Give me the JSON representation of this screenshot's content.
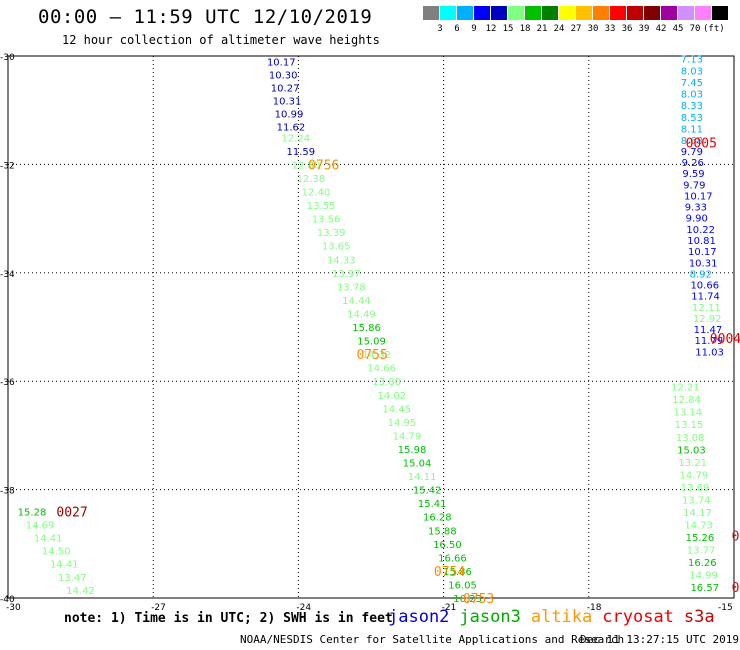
{
  "header": {
    "title": "00:00 – 11:59 UTC 12/10/2019",
    "subtitle": "12 hour collection of altimeter wave heights"
  },
  "colorbar": {
    "colors": [
      "#808080",
      "#00ffff",
      "#00b0ff",
      "#0000ff",
      "#0000c0",
      "#80ff80",
      "#00c000",
      "#008000",
      "#ffff00",
      "#ffc000",
      "#ff8000",
      "#ff0000",
      "#c00000",
      "#800000",
      "#a000a0",
      "#d090ff",
      "#ff80ff",
      "#000000"
    ],
    "labels": [
      "3",
      "6",
      "9",
      "12",
      "15",
      "18",
      "21",
      "24",
      "27",
      "30",
      "33",
      "36",
      "39",
      "42",
      "45",
      "70",
      "(ft)"
    ]
  },
  "footer": {
    "note": "note: 1) Time is in UTC; 2) SWH is in feet",
    "credit": "NOAA/NESDIS Center for Satellite Applications and Research",
    "stamp": "Dec 11 13:27:15 UTC 2019"
  },
  "legend": [
    {
      "name": "jason2",
      "color": "#0000dd"
    },
    {
      "name": "jason3",
      "color": "#00aa00"
    },
    {
      "name": "altika",
      "color": "#ff9900"
    },
    {
      "name": "cryosat",
      "color": "#ee0000"
    },
    {
      "name": "s3a",
      "color": "#cc0000"
    }
  ],
  "chart_data": {
    "type": "scatter",
    "title": "12 hour collection of altimeter wave heights",
    "xlim": [
      -30,
      -15
    ],
    "ylim": [
      -40,
      -30
    ],
    "x_ticks": [
      "-30",
      "-27",
      "-24",
      "-21",
      "-18",
      "-15"
    ],
    "y_ticks": [
      "-30",
      "-32",
      "-34",
      "-36",
      "-38",
      "-40"
    ],
    "grid": true,
    "time_labels": [
      {
        "text": "0756",
        "x": -23.8,
        "y": -32.0,
        "color": "#ff8c00"
      },
      {
        "text": "0755",
        "x": -22.8,
        "y": -35.5,
        "color": "#ff8c00"
      },
      {
        "text": "0754",
        "x": -21.2,
        "y": -39.5,
        "color": "#ff8c00"
      },
      {
        "text": "0753",
        "x": -20.6,
        "y": -40.0,
        "color": "#ff8c00"
      },
      {
        "text": "0005",
        "x": -16.0,
        "y": -31.6,
        "color": "#ee0000"
      },
      {
        "text": "0004",
        "x": -15.5,
        "y": -35.2,
        "color": "#ee0000"
      },
      {
        "text": "0",
        "x": -15.05,
        "y": -38.85,
        "color": "#ee0000"
      },
      {
        "text": "0",
        "x": -15.05,
        "y": -39.8,
        "color": "#ee0000"
      },
      {
        "text": "0027",
        "x": -29.0,
        "y": -38.4,
        "color": "#990000"
      }
    ],
    "tracks": [
      {
        "x0": -24.65,
        "x1": -24.45,
        "y0": -30.1,
        "y1": -31.3,
        "values": [
          "10.17",
          "10.30",
          "10.27",
          "10.31",
          "10.99",
          "11.62"
        ],
        "colors": [
          "#0000c0",
          "#0000c0",
          "#0000c0",
          "#0000c0",
          "#0000c0",
          "#0000c0"
        ]
      },
      {
        "x0": -24.35,
        "x1": -20.8,
        "y0": -31.5,
        "y1": -40.0,
        "values": [
          "12.24",
          "11.59",
          "12.80",
          "12.38",
          "12.40",
          "13.55",
          "13.56",
          "13.39",
          "13.65",
          "14.33",
          "13.97",
          "13.78",
          "14.44",
          "14.49",
          "15.86",
          "15.09",
          "14.32",
          "14.66",
          "13.80",
          "14.02",
          "14.45",
          "14.95",
          "14.79",
          "15.98",
          "15.04",
          "14.11",
          "15.42",
          "15.41",
          "16.28",
          "15.88",
          "16.50",
          "16.66",
          "15.86",
          "16.05",
          "16.23"
        ],
        "colors": [
          "#80ff80",
          "#0000c0",
          "#80ff80",
          "#80ff80",
          "#80ff80",
          "#80ff80",
          "#80ff80",
          "#80ff80",
          "#80ff80",
          "#80ff80",
          "#80ff80",
          "#80ff80",
          "#80ff80",
          "#80ff80",
          "#00c000",
          "#00c000",
          "#80ff80",
          "#80ff80",
          "#80ff80",
          "#80ff80",
          "#80ff80",
          "#80ff80",
          "#80ff80",
          "#00c000",
          "#00c000",
          "#80ff80",
          "#00c000",
          "#00c000",
          "#00c000",
          "#00c000",
          "#00c000",
          "#00c000",
          "#00c000",
          "#00c000",
          "#00c000"
        ]
      },
      {
        "x0": -16.1,
        "x1": -16.1,
        "y0": -30.05,
        "y1": -31.55,
        "values": [
          "7.13",
          "8.03",
          "7.45",
          "8.03",
          "8.33",
          "8.53",
          "8.11",
          "8.68"
        ],
        "colors": [
          "#00b0ff",
          "#00b0ff",
          "#00b0ff",
          "#00b0ff",
          "#00b0ff",
          "#00b0ff",
          "#00b0ff",
          "#00b0ff"
        ]
      },
      {
        "x0": -16.1,
        "x1": -15.8,
        "y0": -31.75,
        "y1": -35.45,
        "values": [
          "9.79",
          "9.26",
          "9.59",
          "9.79",
          "10.17",
          "9.33",
          "9.90",
          "10.22",
          "10.81",
          "10.17",
          "10.31",
          "8.92",
          "10.66",
          "11.74",
          "12.11",
          "12.92",
          "11.47",
          "11.79",
          "11.03"
        ],
        "colors": [
          "#0000ff",
          "#0000ff",
          "#0000ff",
          "#0000ff",
          "#0000ff",
          "#0000ff",
          "#0000ff",
          "#0000ff",
          "#0000ff",
          "#0000ff",
          "#0000ff",
          "#00b0ff",
          "#0000ff",
          "#0000ff",
          "#80ff80",
          "#80ff80",
          "#0000ff",
          "#0000ff",
          "#0000ff"
        ]
      },
      {
        "x0": -16.3,
        "x1": -15.9,
        "y0": -36.1,
        "y1": -39.8,
        "values": [
          "12.21",
          "12.84",
          "13.14",
          "13.15",
          "13.08",
          "15.03",
          "13.21",
          "14.79",
          "13.69",
          "13.74",
          "14.17",
          "14.73",
          "15.26",
          "13.77",
          "16.26",
          "14.99",
          "16.57"
        ],
        "colors": [
          "#80ff80",
          "#80ff80",
          "#80ff80",
          "#80ff80",
          "#80ff80",
          "#00c000",
          "#80ff80",
          "#80ff80",
          "#80ff80",
          "#80ff80",
          "#80ff80",
          "#80ff80",
          "#00c000",
          "#80ff80",
          "#00c000",
          "#80ff80",
          "#00c000"
        ]
      },
      {
        "x0": -29.8,
        "x1": -28.8,
        "y0": -38.4,
        "y1": -39.85,
        "values": [
          "15.28",
          "14.69",
          "14.41",
          "14.50",
          "14.41",
          "13.47",
          "14.42"
        ],
        "colors": [
          "#00c000",
          "#80ff80",
          "#80ff80",
          "#80ff80",
          "#80ff80",
          "#80ff80",
          "#80ff80"
        ]
      }
    ]
  }
}
